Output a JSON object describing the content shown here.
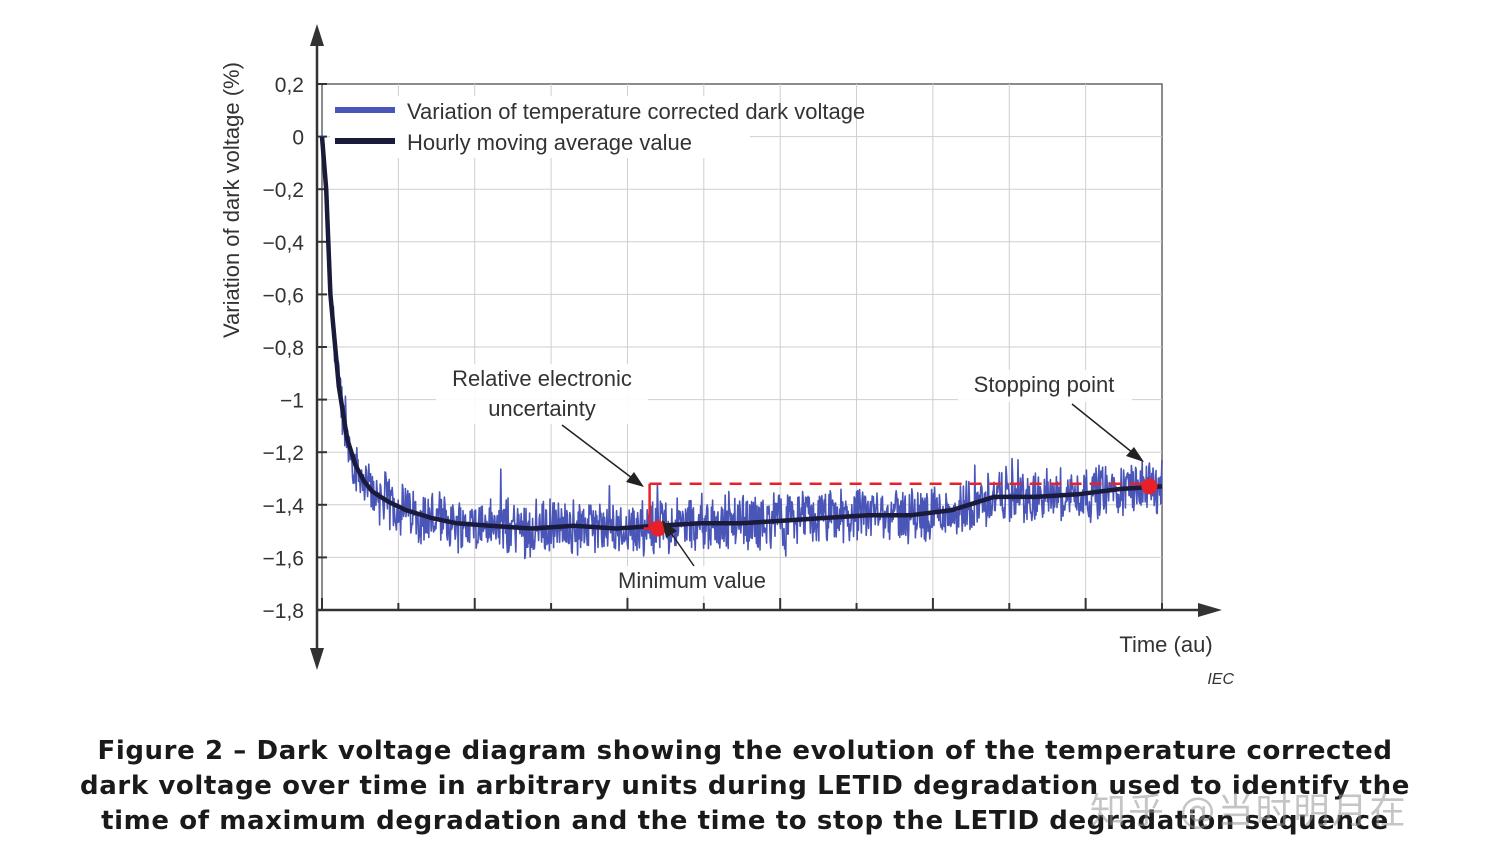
{
  "chart_data": {
    "type": "line",
    "ylabel": "Variation of dark voltage   (%)",
    "xlabel": "Time  (au)",
    "ylim": [
      -1.8,
      0.2
    ],
    "y_ticks": [
      "0,2",
      "0",
      "−0,2",
      "−0,4",
      "−0,6",
      "−0,8",
      "−1",
      "−1,2",
      "−1,4",
      "−1,6",
      "−1,8"
    ],
    "y_tick_values": [
      0.2,
      0,
      -0.2,
      -0.4,
      -0.6,
      -0.8,
      -1.0,
      -1.2,
      -1.4,
      -1.6,
      -1.8
    ],
    "xlim": [
      0,
      100
    ],
    "grid": true,
    "legend_position": "top-left",
    "series": [
      {
        "name": "Variation of temperature corrected dark voltage",
        "color": "#4a55b8",
        "noise_amplitude": 0.12,
        "x": [
          0,
          0.5,
          1,
          2,
          3,
          4,
          5,
          6,
          8,
          10,
          13,
          16,
          20,
          25,
          30,
          35,
          40,
          45,
          50,
          55,
          60,
          65,
          70,
          75,
          78,
          80,
          85,
          90,
          95,
          100
        ],
        "values": [
          0,
          -0.2,
          -0.6,
          -0.95,
          -1.15,
          -1.25,
          -1.31,
          -1.35,
          -1.39,
          -1.42,
          -1.45,
          -1.47,
          -1.48,
          -1.49,
          -1.48,
          -1.49,
          -1.48,
          -1.47,
          -1.47,
          -1.46,
          -1.45,
          -1.44,
          -1.44,
          -1.42,
          -1.39,
          -1.37,
          -1.37,
          -1.36,
          -1.34,
          -1.33
        ]
      },
      {
        "name": "Hourly moving average value",
        "color": "#1a1a3a",
        "x": [
          0,
          0.5,
          1,
          2,
          3,
          4,
          5,
          6,
          8,
          10,
          13,
          16,
          20,
          25,
          30,
          35,
          40,
          45,
          50,
          55,
          60,
          65,
          70,
          75,
          78,
          80,
          85,
          90,
          95,
          100
        ],
        "values": [
          0,
          -0.2,
          -0.6,
          -0.95,
          -1.15,
          -1.25,
          -1.31,
          -1.35,
          -1.39,
          -1.42,
          -1.45,
          -1.47,
          -1.48,
          -1.49,
          -1.48,
          -1.49,
          -1.48,
          -1.47,
          -1.47,
          -1.46,
          -1.45,
          -1.44,
          -1.44,
          -1.42,
          -1.39,
          -1.37,
          -1.37,
          -1.36,
          -1.34,
          -1.33
        ]
      }
    ],
    "markers": [
      {
        "name": "Minimum value",
        "x": 40,
        "y": -1.49,
        "color": "#e8202a"
      },
      {
        "name": "Stopping point",
        "x": 98.5,
        "y": -1.33,
        "color": "#e8202a"
      }
    ],
    "reference_line": {
      "y": -1.32,
      "x_start": 39,
      "x_end": 98.5,
      "color": "#e8202a",
      "style": "dashed"
    },
    "uncertainty_bar": {
      "x": 39,
      "y_top": -1.32,
      "y_bottom": -1.49
    },
    "annotations": [
      {
        "id": "uncertainty",
        "lines": [
          "Relative electronic",
          "uncertainty"
        ]
      },
      {
        "id": "stopping",
        "lines": [
          "Stopping point"
        ]
      },
      {
        "id": "minimum",
        "lines": [
          "Minimum value"
        ]
      }
    ],
    "source": "IEC"
  },
  "caption": {
    "lines": [
      "Figure 2 – Dark voltage diagram showing the evolution of the temperature corrected",
      "dark voltage over time in arbitrary units during LETID degradation used to identify the",
      "time of maximum degradation and the time to stop the LETID degradation sequence"
    ]
  },
  "watermark": "知乎 @当时明月在",
  "colors": {
    "grid": "#cfcfcf",
    "axis": "#333333",
    "marker": "#e8202a"
  }
}
